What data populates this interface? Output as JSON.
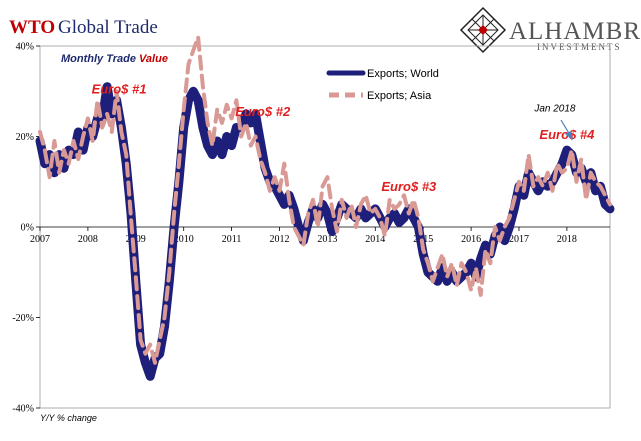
{
  "header": {
    "title_prefix": "WTO",
    "title_main": "Global Trade",
    "subtitle_a": "Monthly Trade",
    "subtitle_b": "Value"
  },
  "logo": {
    "name": "ALHAMBRA",
    "tagline": "INVESTMENTS"
  },
  "footer": {
    "ylabel": "Y/Y % change"
  },
  "colors": {
    "world": "#1e1f7a",
    "asia": "#d99a95",
    "annotation": "#e02020",
    "arrow": "#4f81bd"
  },
  "chart_data": {
    "type": "line",
    "xlim": [
      2007,
      2018.9
    ],
    "ylim": [
      -40,
      40
    ],
    "x_ticks": [
      "2007",
      "2008",
      "2009",
      "2010",
      "2011",
      "2012",
      "2013",
      "2014",
      "2015",
      "2016",
      "2017",
      "2018"
    ],
    "y_ticks": [
      "40%",
      "20%",
      "0%",
      "-20%",
      "-40%"
    ],
    "legend_position": "top-center",
    "series": [
      {
        "name": "Exports; World",
        "style": "solid",
        "points": [
          [
            2007.0,
            19
          ],
          [
            2007.1,
            14
          ],
          [
            2007.2,
            16
          ],
          [
            2007.3,
            12
          ],
          [
            2007.4,
            16
          ],
          [
            2007.5,
            13
          ],
          [
            2007.6,
            17
          ],
          [
            2007.7,
            16
          ],
          [
            2007.8,
            21
          ],
          [
            2007.9,
            17
          ],
          [
            2008.0,
            22
          ],
          [
            2008.1,
            20
          ],
          [
            2008.2,
            24
          ],
          [
            2008.3,
            24
          ],
          [
            2008.4,
            31
          ],
          [
            2008.5,
            25
          ],
          [
            2008.6,
            28
          ],
          [
            2008.7,
            22
          ],
          [
            2008.8,
            14
          ],
          [
            2008.9,
            3
          ],
          [
            2009.0,
            -12
          ],
          [
            2009.1,
            -26
          ],
          [
            2009.2,
            -30
          ],
          [
            2009.3,
            -33
          ],
          [
            2009.4,
            -29
          ],
          [
            2009.5,
            -28
          ],
          [
            2009.6,
            -22
          ],
          [
            2009.7,
            -12
          ],
          [
            2009.8,
            0
          ],
          [
            2009.9,
            10
          ],
          [
            2010.0,
            22
          ],
          [
            2010.1,
            28
          ],
          [
            2010.2,
            30
          ],
          [
            2010.3,
            28
          ],
          [
            2010.4,
            22
          ],
          [
            2010.5,
            18
          ],
          [
            2010.6,
            16
          ],
          [
            2010.7,
            19
          ],
          [
            2010.8,
            16
          ],
          [
            2010.9,
            20
          ],
          [
            2011.0,
            18
          ],
          [
            2011.1,
            22
          ],
          [
            2011.2,
            22
          ],
          [
            2011.3,
            25
          ],
          [
            2011.4,
            23
          ],
          [
            2011.5,
            25
          ],
          [
            2011.6,
            19
          ],
          [
            2011.7,
            13
          ],
          [
            2011.8,
            10
          ],
          [
            2011.9,
            9
          ],
          [
            2012.0,
            7
          ],
          [
            2012.1,
            5
          ],
          [
            2012.2,
            7
          ],
          [
            2012.3,
            4
          ],
          [
            2012.4,
            0
          ],
          [
            2012.5,
            -3
          ],
          [
            2012.6,
            1
          ],
          [
            2012.7,
            4
          ],
          [
            2012.8,
            2
          ],
          [
            2012.9,
            5
          ],
          [
            2013.0,
            3
          ],
          [
            2013.1,
            -1
          ],
          [
            2013.2,
            2
          ],
          [
            2013.3,
            5
          ],
          [
            2013.4,
            4
          ],
          [
            2013.5,
            3
          ],
          [
            2013.6,
            2
          ],
          [
            2013.7,
            4
          ],
          [
            2013.8,
            2
          ],
          [
            2013.9,
            3
          ],
          [
            2014.0,
            4
          ],
          [
            2014.1,
            2
          ],
          [
            2014.2,
            0
          ],
          [
            2014.3,
            2
          ],
          [
            2014.4,
            3
          ],
          [
            2014.5,
            1
          ],
          [
            2014.6,
            2
          ],
          [
            2014.7,
            4
          ],
          [
            2014.8,
            2
          ],
          [
            2014.9,
            0
          ],
          [
            2015.0,
            -6
          ],
          [
            2015.1,
            -10
          ],
          [
            2015.2,
            -11
          ],
          [
            2015.3,
            -12
          ],
          [
            2015.4,
            -9
          ],
          [
            2015.5,
            -12
          ],
          [
            2015.6,
            -10
          ],
          [
            2015.7,
            -12
          ],
          [
            2015.8,
            -11
          ],
          [
            2015.9,
            -10
          ],
          [
            2016.0,
            -8
          ],
          [
            2016.1,
            -11
          ],
          [
            2016.2,
            -7
          ],
          [
            2016.3,
            -4
          ],
          [
            2016.4,
            -6
          ],
          [
            2016.5,
            -2
          ],
          [
            2016.6,
            0
          ],
          [
            2016.7,
            -3
          ],
          [
            2016.8,
            0
          ],
          [
            2016.9,
            4
          ],
          [
            2017.0,
            9
          ],
          [
            2017.1,
            7
          ],
          [
            2017.2,
            12
          ],
          [
            2017.3,
            10
          ],
          [
            2017.4,
            8
          ],
          [
            2017.5,
            10
          ],
          [
            2017.6,
            9
          ],
          [
            2017.7,
            10
          ],
          [
            2017.8,
            12
          ],
          [
            2017.9,
            14
          ],
          [
            2018.0,
            17
          ],
          [
            2018.1,
            16
          ],
          [
            2018.2,
            12
          ],
          [
            2018.3,
            13
          ],
          [
            2018.4,
            10
          ],
          [
            2018.5,
            12
          ],
          [
            2018.6,
            8
          ],
          [
            2018.7,
            9
          ],
          [
            2018.8,
            5
          ],
          [
            2018.9,
            4
          ]
        ]
      },
      {
        "name": "Exports; Asia",
        "style": "dashed",
        "points": [
          [
            2007.0,
            21
          ],
          [
            2007.1,
            17
          ],
          [
            2007.2,
            11
          ],
          [
            2007.3,
            19
          ],
          [
            2007.4,
            12
          ],
          [
            2007.5,
            17
          ],
          [
            2007.6,
            14
          ],
          [
            2007.7,
            19
          ],
          [
            2007.8,
            15
          ],
          [
            2007.9,
            20
          ],
          [
            2008.0,
            24
          ],
          [
            2008.1,
            19
          ],
          [
            2008.2,
            28
          ],
          [
            2008.3,
            22
          ],
          [
            2008.4,
            25
          ],
          [
            2008.5,
            21
          ],
          [
            2008.6,
            30
          ],
          [
            2008.7,
            21
          ],
          [
            2008.8,
            16
          ],
          [
            2008.9,
            2
          ],
          [
            2009.0,
            -11
          ],
          [
            2009.1,
            -25
          ],
          [
            2009.2,
            -28
          ],
          [
            2009.3,
            -26
          ],
          [
            2009.4,
            -30
          ],
          [
            2009.5,
            -25
          ],
          [
            2009.6,
            -20
          ],
          [
            2009.7,
            -10
          ],
          [
            2009.8,
            3
          ],
          [
            2009.9,
            14
          ],
          [
            2010.0,
            26
          ],
          [
            2010.1,
            36
          ],
          [
            2010.2,
            39
          ],
          [
            2010.3,
            42
          ],
          [
            2010.4,
            31
          ],
          [
            2010.5,
            23
          ],
          [
            2010.6,
            18
          ],
          [
            2010.7,
            26
          ],
          [
            2010.8,
            23
          ],
          [
            2010.9,
            27
          ],
          [
            2011.0,
            24
          ],
          [
            2011.1,
            28
          ],
          [
            2011.2,
            20
          ],
          [
            2011.3,
            23
          ],
          [
            2011.4,
            18
          ],
          [
            2011.5,
            20
          ],
          [
            2011.6,
            15
          ],
          [
            2011.7,
            12
          ],
          [
            2011.8,
            8
          ],
          [
            2011.9,
            11
          ],
          [
            2012.0,
            8
          ],
          [
            2012.1,
            14
          ],
          [
            2012.2,
            6
          ],
          [
            2012.3,
            0
          ],
          [
            2012.4,
            -2
          ],
          [
            2012.5,
            -4
          ],
          [
            2012.6,
            3
          ],
          [
            2012.7,
            6
          ],
          [
            2012.8,
            0
          ],
          [
            2012.9,
            9
          ],
          [
            2013.0,
            11
          ],
          [
            2013.1,
            4
          ],
          [
            2013.2,
            -1
          ],
          [
            2013.3,
            6
          ],
          [
            2013.4,
            2
          ],
          [
            2013.5,
            5
          ],
          [
            2013.6,
            0
          ],
          [
            2013.7,
            5
          ],
          [
            2013.8,
            7
          ],
          [
            2013.9,
            3
          ],
          [
            2014.0,
            4
          ],
          [
            2014.1,
            2
          ],
          [
            2014.2,
            -2
          ],
          [
            2014.3,
            6
          ],
          [
            2014.4,
            4
          ],
          [
            2014.5,
            5
          ],
          [
            2014.6,
            7
          ],
          [
            2014.7,
            3
          ],
          [
            2014.8,
            6
          ],
          [
            2014.9,
            2
          ],
          [
            2015.0,
            -5
          ],
          [
            2015.1,
            -8
          ],
          [
            2015.2,
            -12
          ],
          [
            2015.3,
            -9
          ],
          [
            2015.4,
            -6
          ],
          [
            2015.5,
            -11
          ],
          [
            2015.6,
            -8
          ],
          [
            2015.7,
            -13
          ],
          [
            2015.8,
            -8
          ],
          [
            2015.9,
            -10
          ],
          [
            2016.0,
            -14
          ],
          [
            2016.1,
            -9
          ],
          [
            2016.2,
            -15
          ],
          [
            2016.3,
            -5
          ],
          [
            2016.4,
            -8
          ],
          [
            2016.5,
            0
          ],
          [
            2016.6,
            -3
          ],
          [
            2016.7,
            0
          ],
          [
            2016.8,
            2
          ],
          [
            2016.9,
            6
          ],
          [
            2017.0,
            10
          ],
          [
            2017.1,
            8
          ],
          [
            2017.2,
            16
          ],
          [
            2017.3,
            9
          ],
          [
            2017.4,
            11
          ],
          [
            2017.5,
            9
          ],
          [
            2017.6,
            12
          ],
          [
            2017.7,
            8
          ],
          [
            2017.8,
            14
          ],
          [
            2017.9,
            12
          ],
          [
            2018.0,
            13
          ],
          [
            2018.1,
            17
          ],
          [
            2018.2,
            10
          ],
          [
            2018.3,
            15
          ],
          [
            2018.4,
            6
          ],
          [
            2018.5,
            12
          ],
          [
            2018.6,
            10
          ],
          [
            2018.7,
            9
          ],
          [
            2018.8,
            7
          ],
          [
            2018.9,
            5
          ]
        ]
      }
    ],
    "annotations": [
      {
        "text": "Euro$ #1",
        "x": 2008.65,
        "y": 29.5
      },
      {
        "text": "Euro$ #2",
        "x": 2011.65,
        "y": 24.5
      },
      {
        "text": "Euro$ #3",
        "x": 2014.7,
        "y": 8
      },
      {
        "text": "Euro$ #4",
        "x": 2018.0,
        "y": 19.5
      },
      {
        "text": "Jan 2018",
        "x": 2017.75,
        "y": 25.5
      }
    ]
  }
}
